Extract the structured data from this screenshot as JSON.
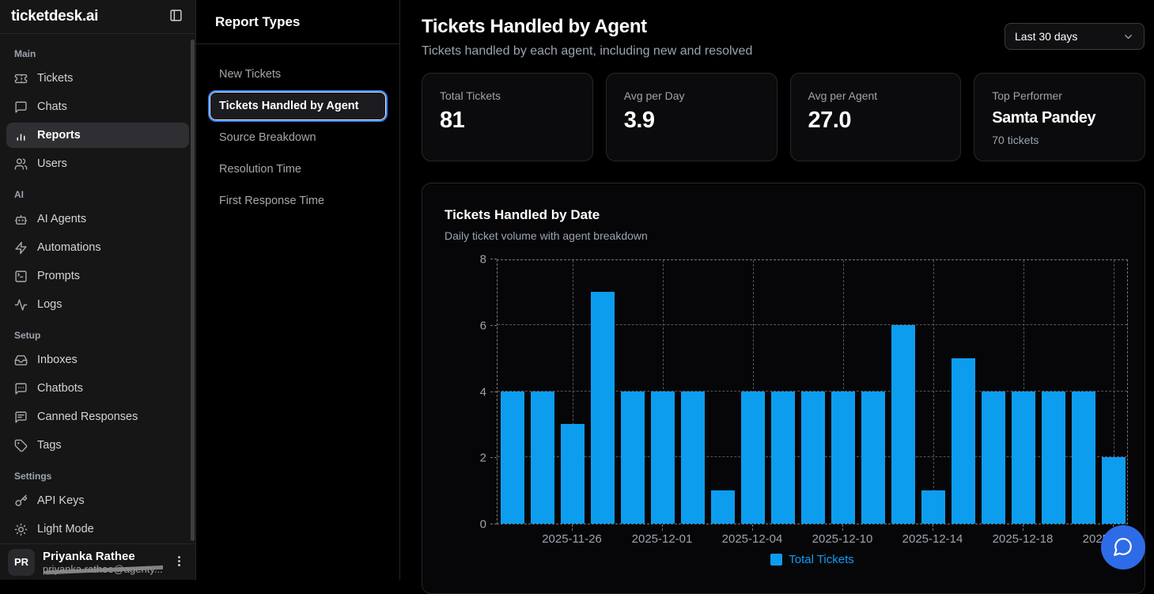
{
  "app": {
    "name": "ticketdesk.ai"
  },
  "colors": {
    "accent_blue": "#3b82f6",
    "bar_blue": "#0d9def",
    "fab_blue": "#2e6be6"
  },
  "sidebar": {
    "sections": [
      {
        "label": "Main",
        "items": [
          {
            "icon": "ticket-icon",
            "label": "Tickets",
            "active": false
          },
          {
            "icon": "chat-bubble-icon",
            "label": "Chats",
            "active": false
          },
          {
            "icon": "bar-chart-icon",
            "label": "Reports",
            "active": true
          },
          {
            "icon": "users-icon",
            "label": "Users",
            "active": false
          }
        ]
      },
      {
        "label": "AI",
        "items": [
          {
            "icon": "bot-icon",
            "label": "AI Agents",
            "active": false
          },
          {
            "icon": "zap-icon",
            "label": "Automations",
            "active": false
          },
          {
            "icon": "terminal-icon",
            "label": "Prompts",
            "active": false
          },
          {
            "icon": "activity-icon",
            "label": "Logs",
            "active": false
          }
        ]
      },
      {
        "label": "Setup",
        "items": [
          {
            "icon": "inbox-icon",
            "label": "Inboxes",
            "active": false
          },
          {
            "icon": "chatbot-icon",
            "label": "Chatbots",
            "active": false
          },
          {
            "icon": "message-text-icon",
            "label": "Canned Responses",
            "active": false
          },
          {
            "icon": "tag-icon",
            "label": "Tags",
            "active": false
          }
        ]
      },
      {
        "label": "Settings",
        "items": [
          {
            "icon": "key-icon",
            "label": "API Keys",
            "active": false
          },
          {
            "icon": "sun-icon",
            "label": "Light Mode",
            "active": false
          }
        ]
      }
    ],
    "user": {
      "initials": "PR",
      "name": "Priyanka Rathee",
      "email": "priyanka.rathee@agenty...."
    }
  },
  "report_panel": {
    "title": "Report Types",
    "items": [
      {
        "label": "New Tickets",
        "active": false
      },
      {
        "label": "Tickets Handled by Agent",
        "active": true
      },
      {
        "label": "Source Breakdown",
        "active": false
      },
      {
        "label": "Resolution Time",
        "active": false
      },
      {
        "label": "First Response Time",
        "active": false
      }
    ]
  },
  "main": {
    "title": "Tickets Handled by Agent",
    "subtitle": "Tickets handled by each agent, including new and resolved",
    "range_dropdown": {
      "value": "Last 30 days"
    },
    "stats": [
      {
        "label": "Total Tickets",
        "value": "81"
      },
      {
        "label": "Avg per Day",
        "value": "3.9"
      },
      {
        "label": "Avg per Agent",
        "value": "27.0"
      },
      {
        "label": "Top Performer",
        "value": "Samta Pandey",
        "sub": "70 tickets"
      }
    ]
  },
  "chart_data": {
    "type": "bar",
    "title": "Tickets Handled by Date",
    "subtitle": "Daily ticket volume with agent breakdown",
    "values": [
      4,
      4,
      3,
      7,
      4,
      4,
      4,
      1,
      4,
      4,
      4,
      4,
      4,
      6,
      1,
      5,
      4,
      4,
      4,
      4,
      2
    ],
    "x_tick_labels": [
      "2025-11-26",
      "2025-12-01",
      "2025-12-04",
      "2025-12-10",
      "2025-12-14",
      "2025-12-18",
      "2025-12-21"
    ],
    "x_tick_indices": [
      2,
      5,
      8,
      11,
      14,
      17,
      20
    ],
    "ylim": [
      0,
      8
    ],
    "yticks": [
      0,
      2,
      4,
      6,
      8
    ],
    "grid": true,
    "legend_position": "bottom",
    "legend": [
      {
        "label": "Total Tickets",
        "color": "#0d9def"
      }
    ],
    "bar_color": "#0d9def",
    "total": 81
  }
}
